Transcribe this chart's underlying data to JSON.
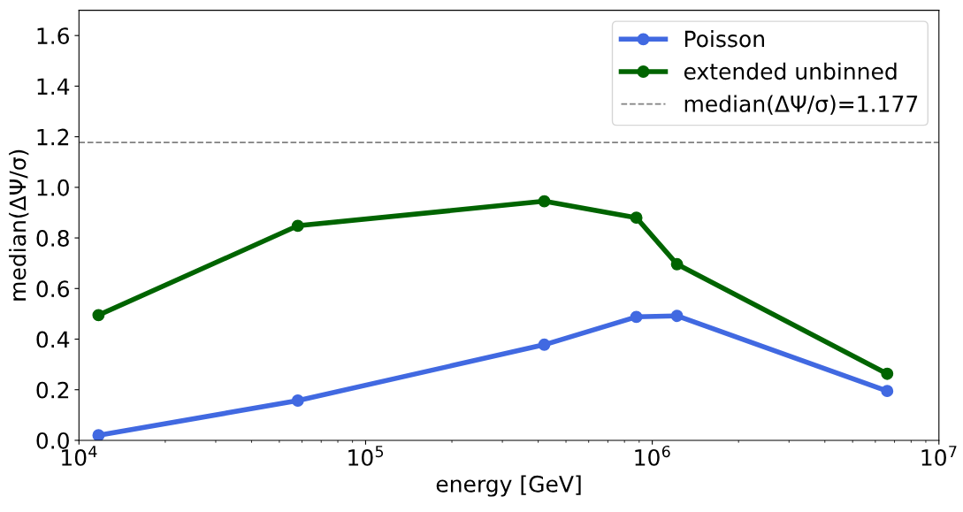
{
  "chart_data": {
    "type": "line",
    "xlabel": "energy [GeV]",
    "ylabel": "median(ΔΨ/σ)",
    "log": "x",
    "xlim": [
      10000,
      10000000
    ],
    "ylim": [
      0,
      1.7
    ],
    "xticks": [
      {
        "value": 10000,
        "label": "10$^{4}$"
      },
      {
        "value": 100000,
        "label": "10$^{5}$"
      },
      {
        "value": 1000000,
        "label": "10$^{6}$"
      },
      {
        "value": 10000000,
        "label": "10$^{7}$"
      }
    ],
    "yticks": [
      {
        "value": 0,
        "label": "0.0"
      },
      {
        "value": 0.2,
        "label": "0.2"
      },
      {
        "value": 0.4,
        "label": "0.4"
      },
      {
        "value": 0.6,
        "label": "0.6"
      },
      {
        "value": 0.8,
        "label": "0.8"
      },
      {
        "value": 1.0,
        "label": "1.0"
      },
      {
        "value": 1.2,
        "label": "1.2"
      },
      {
        "value": 1.4,
        "label": "1.4"
      },
      {
        "value": 1.6,
        "label": "1.6"
      }
    ],
    "x": [
      11700,
      58000,
      420000,
      880000,
      1220000,
      6600000
    ],
    "series": [
      {
        "name": "Poisson",
        "color": "#4169e1",
        "values": [
          0.02,
          0.157,
          0.378,
          0.488,
          0.492,
          0.195
        ]
      },
      {
        "name": "extended unbinned",
        "color": "#006400",
        "values": [
          0.495,
          0.848,
          0.945,
          0.88,
          0.696,
          0.263
        ]
      }
    ],
    "ref_lines": [
      {
        "axis": "y",
        "value": 1.177,
        "label": "median(ΔΨ/σ)=1.177",
        "color": "#808080",
        "line_style": "dashed"
      }
    ],
    "marker": "circle",
    "line_style": "solid",
    "legend": "top right",
    "grid": false
  }
}
